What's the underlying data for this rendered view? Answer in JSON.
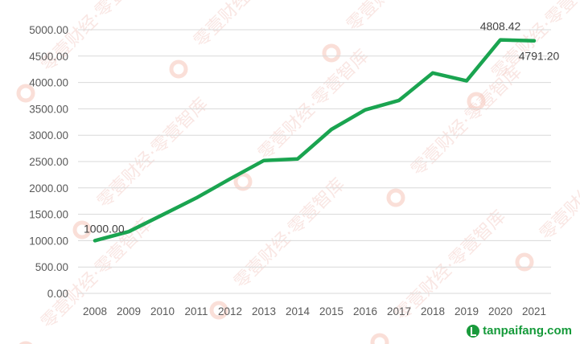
{
  "chart_data": {
    "type": "line",
    "title": "",
    "xlabel": "",
    "ylabel": "",
    "categories": [
      "2008",
      "2009",
      "2010",
      "2011",
      "2012",
      "2013",
      "2014",
      "2015",
      "2016",
      "2017",
      "2018",
      "2019",
      "2020",
      "2021"
    ],
    "series": [
      {
        "values": [
          1000.0,
          1170,
          1490,
          1810,
          2170,
          2520,
          2550,
          3110,
          3480,
          3660,
          4180,
          4030,
          4808.42,
          4791.2
        ],
        "color": "#1aa450"
      }
    ],
    "ylim": [
      0,
      5000
    ],
    "yticks": [
      "0.00",
      "500.00",
      "1000.00",
      "1500.00",
      "2000.00",
      "2500.00",
      "3000.00",
      "3500.00",
      "4000.00",
      "4500.00",
      "5000.00"
    ],
    "data_labels": [
      {
        "index": 0,
        "text": "1000.00"
      },
      {
        "index": 12,
        "text": "4808.42"
      },
      {
        "index": 13,
        "text": "4791.20"
      }
    ],
    "grid": true,
    "legend": "none"
  },
  "watermark": {
    "text": "零壹财经·零壹智库",
    "color": "#f2c9c2"
  },
  "brand": {
    "text": "tanpaifang.com",
    "icon": "leaf-check-icon",
    "color": "#159a3a"
  }
}
